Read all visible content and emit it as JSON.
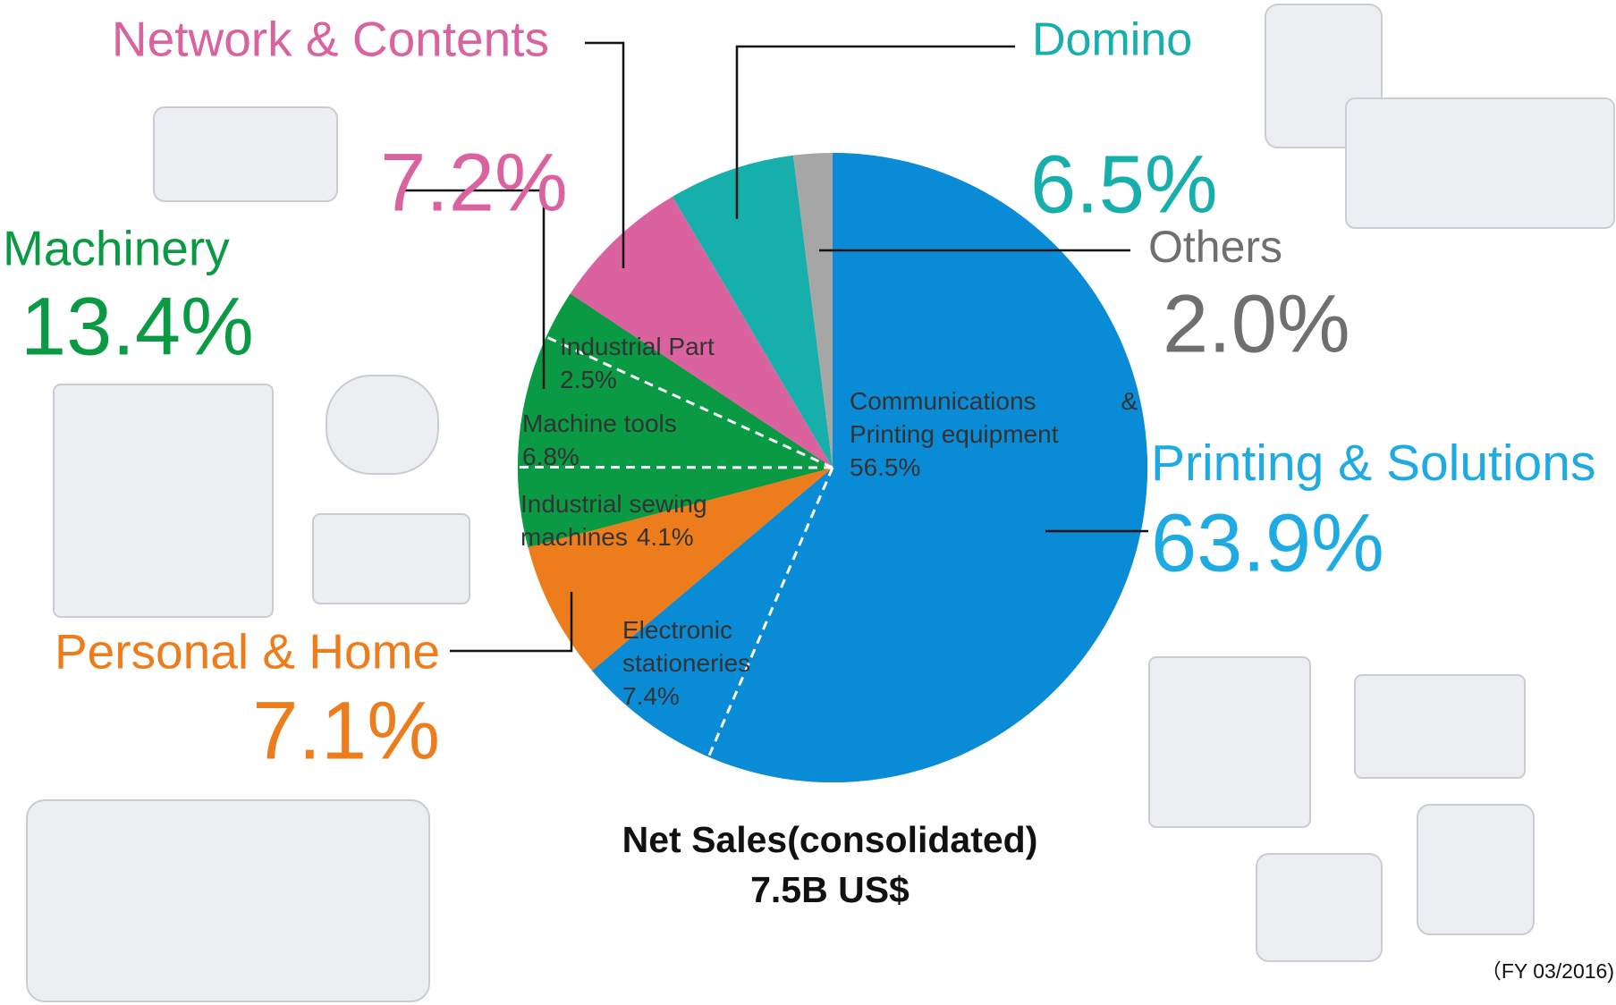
{
  "chart_data": {
    "type": "pie",
    "title": "Net Sales(consolidated)",
    "subtitle": "7.5B US$",
    "footnote": "（FY 03/2016)",
    "segments": [
      {
        "name": "Printing & Solutions",
        "value": 63.9,
        "value_label": "63.9%",
        "color": "#0a8bd6",
        "label_color": "#1eaae2",
        "subsegments": [
          {
            "name": "Communications & Printing equipment",
            "value": 56.5,
            "value_label": "56.5%"
          },
          {
            "name": "Electronic stationeries",
            "value": 7.4,
            "value_label": "7.4%"
          }
        ]
      },
      {
        "name": "Personal & Home",
        "value": 7.1,
        "value_label": "7.1%",
        "color": "#ed7d1c",
        "label_color": "#ed7d1c"
      },
      {
        "name": "Machinery",
        "value": 13.4,
        "value_label": "13.4%",
        "color": "#0a9a44",
        "label_color": "#0a9a44",
        "subsegments": [
          {
            "name": "Industrial sewing machines",
            "value": 4.1,
            "value_label": "4.1%"
          },
          {
            "name": "Machine tools",
            "value": 6.8,
            "value_label": "6.8%"
          },
          {
            "name": "Industrial Part",
            "value": 2.5,
            "value_label": "2.5%"
          }
        ]
      },
      {
        "name": "Network & Contents",
        "value": 7.2,
        "value_label": "7.2%",
        "color": "#d9629f",
        "label_color": "#d9629f"
      },
      {
        "name": "Domino",
        "value": 6.5,
        "value_label": "6.5%",
        "color": "#17afac",
        "label_color": "#17afac"
      },
      {
        "name": "Others",
        "value": 2,
        "value_label": "2.0%",
        "color": "#a6a6a6",
        "label_color": "#6f6f6f"
      }
    ]
  }
}
